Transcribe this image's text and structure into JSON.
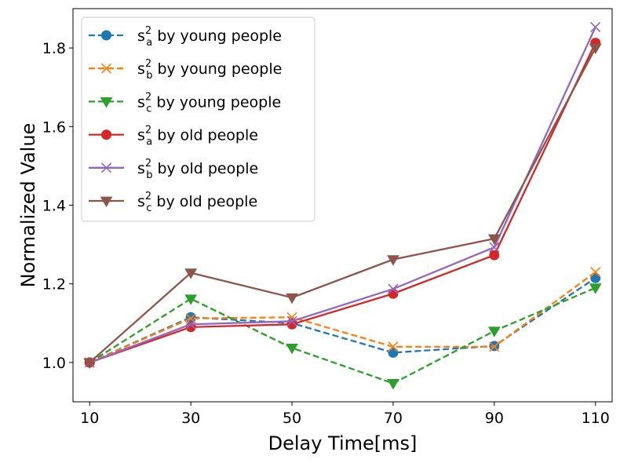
{
  "chart_data": {
    "type": "line",
    "xlabel": "Delay Time[ms]",
    "ylabel": "Normalized Value",
    "x": [
      10,
      30,
      50,
      70,
      90,
      110
    ],
    "xticks": [
      "10",
      "30",
      "50",
      "70",
      "90",
      "110"
    ],
    "yticks": [
      "1.0",
      "1.2",
      "1.4",
      "1.6",
      "1.8"
    ],
    "ylim": [
      0.9,
      1.9
    ],
    "grid": false,
    "legend_position": "top-left",
    "series": [
      {
        "name": "s_a^2 by young people",
        "base": "s",
        "sub": "a",
        "sup": "2",
        "tail": " by young people",
        "color": "#1f77b4",
        "marker": "circle",
        "linestyle": "dashed",
        "values": [
          1.0,
          1.115,
          1.1,
          1.025,
          1.042,
          1.215
        ]
      },
      {
        "name": "s_b^2 by young people",
        "base": "s",
        "sub": "b",
        "sup": "2",
        "tail": " by young people",
        "color": "#ff7f0e",
        "marker": "x",
        "linestyle": "dashed",
        "values": [
          1.0,
          1.112,
          1.115,
          1.04,
          1.04,
          1.23
        ]
      },
      {
        "name": "s_c^2 by young people",
        "base": "s",
        "sub": "c",
        "sup": "2",
        "tail": " by young people",
        "color": "#2ca02c",
        "marker": "triangle-down",
        "linestyle": "dashed",
        "values": [
          1.0,
          1.162,
          1.037,
          0.947,
          1.08,
          1.19
        ]
      },
      {
        "name": "s_a^2 by old people",
        "base": "s",
        "sub": "a",
        "sup": "2",
        "tail": " by old people",
        "color": "#d62728",
        "marker": "circle",
        "linestyle": "solid",
        "values": [
          1.0,
          1.09,
          1.097,
          1.175,
          1.273,
          1.813
        ]
      },
      {
        "name": "s_b^2 by old people",
        "base": "s",
        "sub": "b",
        "sup": "2",
        "tail": " by old people",
        "color": "#9467bd",
        "marker": "x",
        "linestyle": "solid",
        "values": [
          1.0,
          1.097,
          1.105,
          1.187,
          1.293,
          1.853
        ]
      },
      {
        "name": "s_c^2 by old people",
        "base": "s",
        "sub": "c",
        "sup": "2",
        "tail": " by old people",
        "color": "#8c564b",
        "marker": "triangle-down",
        "linestyle": "solid",
        "values": [
          1.0,
          1.228,
          1.165,
          1.262,
          1.315,
          1.8
        ]
      }
    ]
  }
}
